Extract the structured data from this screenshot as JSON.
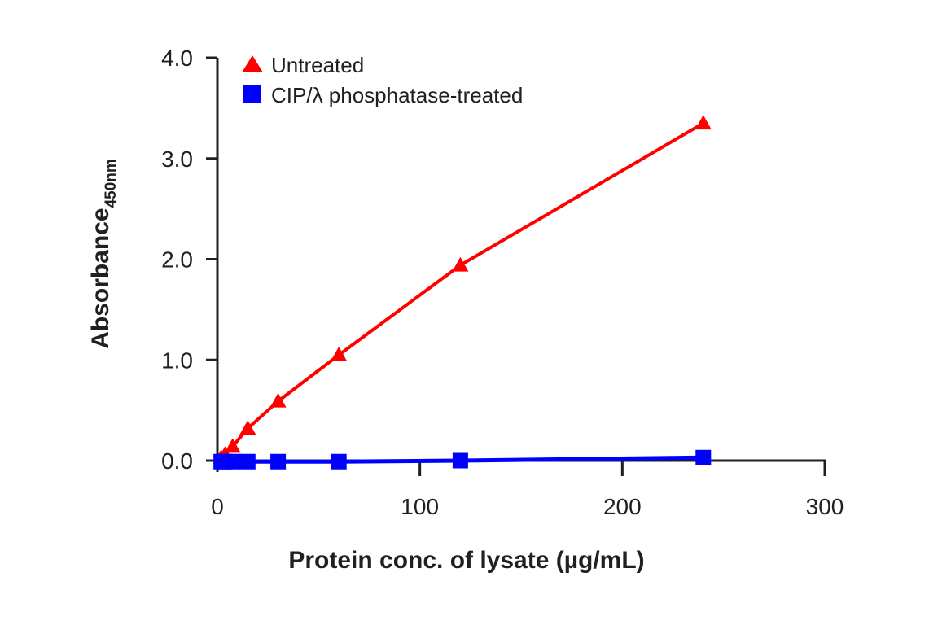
{
  "chart_data": {
    "type": "line",
    "title": "",
    "xlabel": "Protein conc. of lysate (µg/mL)",
    "ylabel": "Absorbance",
    "ylabel_subscript": "450nm",
    "xlim": [
      0,
      300
    ],
    "ylim": [
      0,
      4
    ],
    "x_ticks": [
      0,
      100,
      200,
      300
    ],
    "x_tick_labels": [
      "0",
      "100",
      "200",
      "300"
    ],
    "y_ticks": [
      0,
      1,
      2,
      3,
      4
    ],
    "y_tick_labels": [
      "0.0",
      "1.0",
      "2.0",
      "3.0",
      "4.0"
    ],
    "grid": false,
    "legend_position": "top-left",
    "series": [
      {
        "name": "Untreated",
        "color": "#ff0000",
        "marker": "triangle",
        "x": [
          1.875,
          3.75,
          7.5,
          15,
          30,
          60,
          120,
          240
        ],
        "y": [
          0.03,
          0.06,
          0.14,
          0.32,
          0.59,
          1.05,
          1.94,
          3.35
        ]
      },
      {
        "name": "CIP/λ phosphatase-treated",
        "color": "#0000ff",
        "marker": "square",
        "x": [
          1.875,
          3.75,
          7.5,
          15,
          30,
          60,
          120,
          240
        ],
        "y": [
          -0.01,
          -0.01,
          -0.01,
          -0.01,
          -0.01,
          -0.01,
          0.0,
          0.03
        ]
      }
    ]
  }
}
